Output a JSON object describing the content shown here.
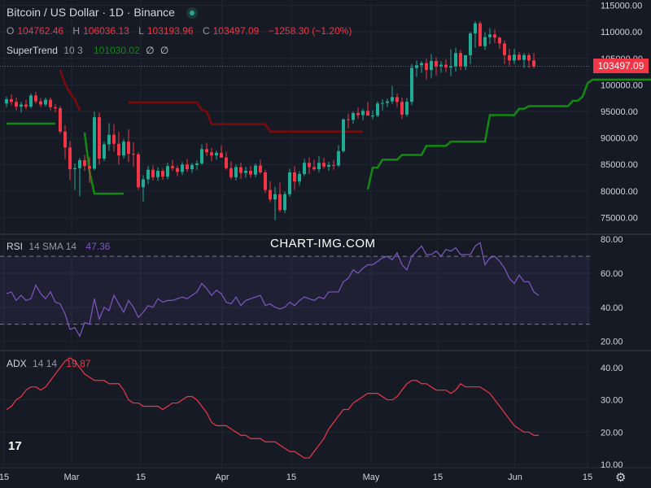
{
  "header": {
    "title": "Bitcoin / US Dollar · 1D · Binance",
    "open_label": "O",
    "open": "104762.46",
    "high_label": "H",
    "high": "106036.13",
    "low_label": "L",
    "low": "103193.96",
    "close_label": "C",
    "close": "103497.09",
    "change": "−1258.30 (−1.20%)"
  },
  "supertrend": {
    "label": "SuperTrend",
    "params": "10 3",
    "value": "101030.02",
    "na1": "∅",
    "na2": "∅"
  },
  "rsi": {
    "label": "RSI",
    "params": "14 SMA 14",
    "value": "47.36"
  },
  "adx": {
    "label": "ADX",
    "params": "14 14",
    "value": "19.87"
  },
  "watermark": "CHART-IMG.COM",
  "last_price": "103497.09",
  "colors": {
    "up": "#22ab94",
    "down": "#f23645",
    "st_up": "#128a12",
    "st_down": "#7d0a0a",
    "rsi": "#7e57c2",
    "adx": "#f23645",
    "bg": "#161a25"
  },
  "chart_data": {
    "type": "candlestick",
    "x_tick_labels": [
      "15",
      "Mar",
      "15",
      "Apr",
      "15",
      "May",
      "15",
      "Jun",
      "15"
    ],
    "price_axis": {
      "ticks": [
        "75000.00",
        "80000.00",
        "85000.00",
        "90000.00",
        "95000.00",
        "100000.00",
        "105000.00",
        "110000.00",
        "115000.00"
      ],
      "ylim": [
        72000,
        116000
      ]
    },
    "rsi_axis": {
      "ticks": [
        "20.00",
        "40.00",
        "60.00",
        "80.00"
      ],
      "ylim": [
        15,
        82
      ],
      "band": [
        30,
        70
      ]
    },
    "adx_axis": {
      "ticks": [
        "10.00",
        "20.00",
        "30.00",
        "40.00"
      ],
      "ylim": [
        9,
        45
      ]
    },
    "candles": [
      [
        96500,
        97800,
        95800,
        97300
      ],
      [
        97300,
        98200,
        96200,
        96800
      ],
      [
        96800,
        97600,
        95200,
        95900
      ],
      [
        95900,
        96800,
        94800,
        96300
      ],
      [
        96300,
        97200,
        95400,
        95900
      ],
      [
        95900,
        98400,
        95600,
        98000
      ],
      [
        98000,
        98700,
        96500,
        96900
      ],
      [
        96900,
        97500,
        95800,
        96300
      ],
      [
        96300,
        97600,
        95900,
        97200
      ],
      [
        97200,
        97600,
        95200,
        95800
      ],
      [
        95800,
        96400,
        94800,
        95600
      ],
      [
        95600,
        96000,
        90800,
        91200
      ],
      [
        91200,
        92400,
        86000,
        88200
      ],
      [
        88200,
        89400,
        82000,
        84100
      ],
      [
        84100,
        85200,
        80200,
        84300
      ],
      [
        84300,
        86200,
        79000,
        85800
      ],
      [
        85800,
        86800,
        83800,
        84700
      ],
      [
        84700,
        86400,
        81500,
        84200
      ],
      [
        84200,
        95000,
        83900,
        93900
      ],
      [
        93900,
        94800,
        85000,
        86100
      ],
      [
        86100,
        89300,
        85600,
        88800
      ],
      [
        88800,
        92800,
        87600,
        90600
      ],
      [
        90600,
        92600,
        87400,
        88900
      ],
      [
        88900,
        91200,
        85000,
        86700
      ],
      [
        86700,
        89800,
        86100,
        89300
      ],
      [
        89300,
        91600,
        85500,
        87000
      ],
      [
        87000,
        89200,
        84600,
        86900
      ],
      [
        86900,
        87300,
        80200,
        80700
      ],
      [
        80700,
        83000,
        78000,
        82200
      ],
      [
        82200,
        84700,
        81300,
        84000
      ],
      [
        84000,
        84800,
        82000,
        82600
      ],
      [
        82600,
        84500,
        81900,
        83800
      ],
      [
        83800,
        84300,
        82100,
        82700
      ],
      [
        82700,
        85300,
        82200,
        84700
      ],
      [
        84700,
        85900,
        83800,
        84300
      ],
      [
        84300,
        84800,
        82800,
        83600
      ],
      [
        83600,
        85500,
        83000,
        85000
      ],
      [
        85000,
        86000,
        83600,
        84100
      ],
      [
        84100,
        85300,
        83400,
        84900
      ],
      [
        84900,
        85800,
        84000,
        85200
      ],
      [
        85200,
        88800,
        84900,
        87900
      ],
      [
        87900,
        89100,
        86600,
        87300
      ],
      [
        87300,
        88100,
        85600,
        86700
      ],
      [
        86700,
        87600,
        85900,
        87200
      ],
      [
        87200,
        88600,
        86300,
        86300
      ],
      [
        86300,
        87400,
        84000,
        84300
      ],
      [
        84300,
        85600,
        82200,
        82600
      ],
      [
        82600,
        85000,
        82000,
        84500
      ],
      [
        84500,
        85300,
        82300,
        83400
      ],
      [
        83400,
        84600,
        82500,
        83800
      ],
      [
        83800,
        84700,
        82500,
        83100
      ],
      [
        83100,
        85200,
        82600,
        84800
      ],
      [
        84800,
        85900,
        83200,
        83500
      ],
      [
        83500,
        84000,
        79600,
        80200
      ],
      [
        80200,
        81800,
        77900,
        78400
      ],
      [
        78400,
        80800,
        74500,
        79400
      ],
      [
        79400,
        81600,
        76000,
        76400
      ],
      [
        76400,
        79900,
        75800,
        79400
      ],
      [
        79400,
        84200,
        78900,
        83500
      ],
      [
        83500,
        84700,
        80200,
        81800
      ],
      [
        81800,
        83700,
        81000,
        83200
      ],
      [
        83200,
        86100,
        82800,
        85300
      ],
      [
        85300,
        86300,
        83200,
        84500
      ],
      [
        84500,
        85900,
        83800,
        84100
      ],
      [
        84100,
        86600,
        83500,
        85300
      ],
      [
        85300,
        86300,
        84200,
        84600
      ],
      [
        84600,
        85500,
        83800,
        84900
      ],
      [
        84900,
        85800,
        84000,
        84800
      ],
      [
        84800,
        88600,
        84500,
        87500
      ],
      [
        87500,
        93700,
        87200,
        93500
      ],
      [
        93500,
        94600,
        91800,
        93400
      ],
      [
        93400,
        95000,
        92700,
        94700
      ],
      [
        94700,
        95700,
        93600,
        94300
      ],
      [
        94300,
        95500,
        93300,
        95100
      ],
      [
        95100,
        96800,
        94300,
        94200
      ],
      [
        94200,
        95200,
        93500,
        94200
      ],
      [
        94200,
        96900,
        93900,
        96500
      ],
      [
        96500,
        97300,
        95200,
        96600
      ],
      [
        96600,
        97400,
        95800,
        96900
      ],
      [
        96900,
        99800,
        96400,
        97700
      ],
      [
        97700,
        98400,
        95800,
        96800
      ],
      [
        96800,
        97600,
        93600,
        94400
      ],
      [
        94400,
        97500,
        94000,
        96800
      ],
      [
        96800,
        103900,
        96200,
        103200
      ],
      [
        103200,
        104600,
        101500,
        103700
      ],
      [
        103700,
        104500,
        102300,
        104100
      ],
      [
        104100,
        104900,
        101000,
        102800
      ],
      [
        102800,
        105800,
        101200,
        104500
      ],
      [
        104500,
        105200,
        101800,
        103500
      ],
      [
        103500,
        104500,
        102300,
        103800
      ],
      [
        103800,
        104800,
        102400,
        103300
      ],
      [
        103300,
        106700,
        101600,
        103500
      ],
      [
        103500,
        107000,
        102500,
        106000
      ],
      [
        106000,
        106600,
        102800,
        103500
      ],
      [
        103500,
        105500,
        102800,
        105600
      ],
      [
        105600,
        110000,
        103900,
        109700
      ],
      [
        109700,
        112000,
        107000,
        111600
      ],
      [
        111600,
        112000,
        107300,
        107300
      ],
      [
        107300,
        109900,
        106600,
        109000
      ],
      [
        109000,
        110700,
        107700,
        109500
      ],
      [
        109500,
        110400,
        107900,
        108900
      ],
      [
        108900,
        109100,
        106800,
        107800
      ],
      [
        107800,
        108400,
        103900,
        105600
      ],
      [
        105600,
        106800,
        103600,
        104600
      ],
      [
        104600,
        106800,
        103900,
        105700
      ],
      [
        105700,
        106200,
        104600,
        104700
      ],
      [
        104700,
        106000,
        103200,
        105600
      ],
      [
        105600,
        106000,
        103200,
        104600
      ],
      [
        104600,
        106000,
        103100,
        103500
      ]
    ],
    "supertrend_segments": [
      {
        "trend": "up",
        "values": [
          92700,
          92700,
          92700,
          92700,
          92700,
          92700,
          92700,
          92700,
          92700,
          92700,
          92700
        ]
      },
      {
        "trend": "down",
        "values": [
          102800,
          100200,
          98500,
          97300,
          95200
        ]
      },
      {
        "trend": "up",
        "values": [
          91000,
          83700,
          79500,
          79500,
          79500,
          79500,
          79500,
          79500,
          79500
        ]
      },
      {
        "trend": "down",
        "values": [
          96700,
          96700,
          96700,
          96700,
          96700,
          96700,
          96700,
          96700,
          96700,
          96700,
          96700,
          96700,
          96700,
          96700,
          96700,
          95300,
          95000,
          92600,
          92600,
          92600,
          92600,
          92600,
          92600,
          92600,
          92600,
          92600,
          92600,
          92600,
          92600,
          91200,
          91200,
          91200,
          91200,
          91200,
          91200,
          91200,
          91200,
          91200,
          91200,
          91200,
          91200,
          91200,
          91200,
          91200,
          91200,
          91200,
          91200,
          91200,
          91200
        ]
      },
      {
        "trend": "up",
        "values": [
          80300,
          84400,
          84400,
          85900,
          85900,
          85900,
          85900,
          86800,
          86800,
          86800,
          86800,
          86800,
          88500,
          88500,
          88500,
          88500,
          88500,
          89300,
          89300,
          89300,
          89300,
          89300,
          89300,
          89300,
          89300,
          94300,
          94300,
          94300,
          94300,
          94300,
          94300,
          95500,
          95500,
          96000,
          96000,
          96000,
          96000,
          96000,
          96000,
          96000,
          96000,
          96000,
          97000,
          97000,
          97800,
          100300,
          101000,
          101000,
          101000,
          101000,
          101000,
          101000,
          101000,
          101000,
          101000,
          101000,
          101000,
          101000,
          101000,
          101000,
          101000,
          101000,
          101000,
          101030
        ]
      }
    ],
    "rsi_values": [
      48,
      49,
      44,
      47,
      44,
      45,
      53,
      48,
      45,
      49,
      43,
      42,
      36,
      27,
      28,
      23,
      31,
      30,
      45,
      33,
      40,
      38,
      47,
      42,
      37,
      44,
      40,
      34,
      37,
      41,
      40,
      45,
      43,
      44,
      44,
      45,
      46,
      45,
      47,
      49,
      54,
      51,
      47,
      50,
      48,
      43,
      42,
      46,
      41,
      44,
      45,
      46,
      47,
      41,
      42,
      40,
      39,
      40,
      43,
      41,
      44,
      46,
      45,
      44,
      46,
      45,
      49,
      49,
      49,
      55,
      57,
      62,
      60,
      63,
      65,
      65,
      67,
      69,
      70,
      68,
      72,
      65,
      62,
      70,
      73,
      76,
      71,
      71,
      73,
      70,
      74,
      73,
      75,
      71,
      71,
      71,
      76,
      78,
      65,
      69,
      70,
      67,
      63,
      57,
      54,
      59,
      55,
      55,
      49,
      47
    ],
    "adx_values": [
      27,
      28,
      30,
      31,
      33,
      34,
      34,
      33,
      34,
      36,
      38,
      40,
      42,
      43,
      42,
      40,
      38,
      37,
      36,
      36,
      36,
      35,
      35,
      35,
      33,
      30,
      29,
      29,
      28,
      28,
      28,
      28,
      27,
      28,
      29,
      29,
      30,
      31,
      31,
      30,
      28,
      26,
      23,
      22,
      22,
      22,
      21,
      20,
      19,
      19,
      18,
      18,
      18,
      17,
      17,
      17,
      16,
      15,
      14,
      14,
      13,
      12,
      12,
      14,
      16,
      18,
      21,
      23,
      25,
      27,
      27,
      29,
      30,
      31,
      32,
      32,
      32,
      31,
      30,
      30,
      31,
      33,
      35,
      36,
      36,
      35,
      35,
      34,
      33,
      33,
      33,
      32,
      33,
      35,
      34,
      34,
      34,
      34,
      33,
      32,
      30,
      28,
      26,
      24,
      22,
      21,
      20,
      20,
      19,
      19
    ]
  }
}
